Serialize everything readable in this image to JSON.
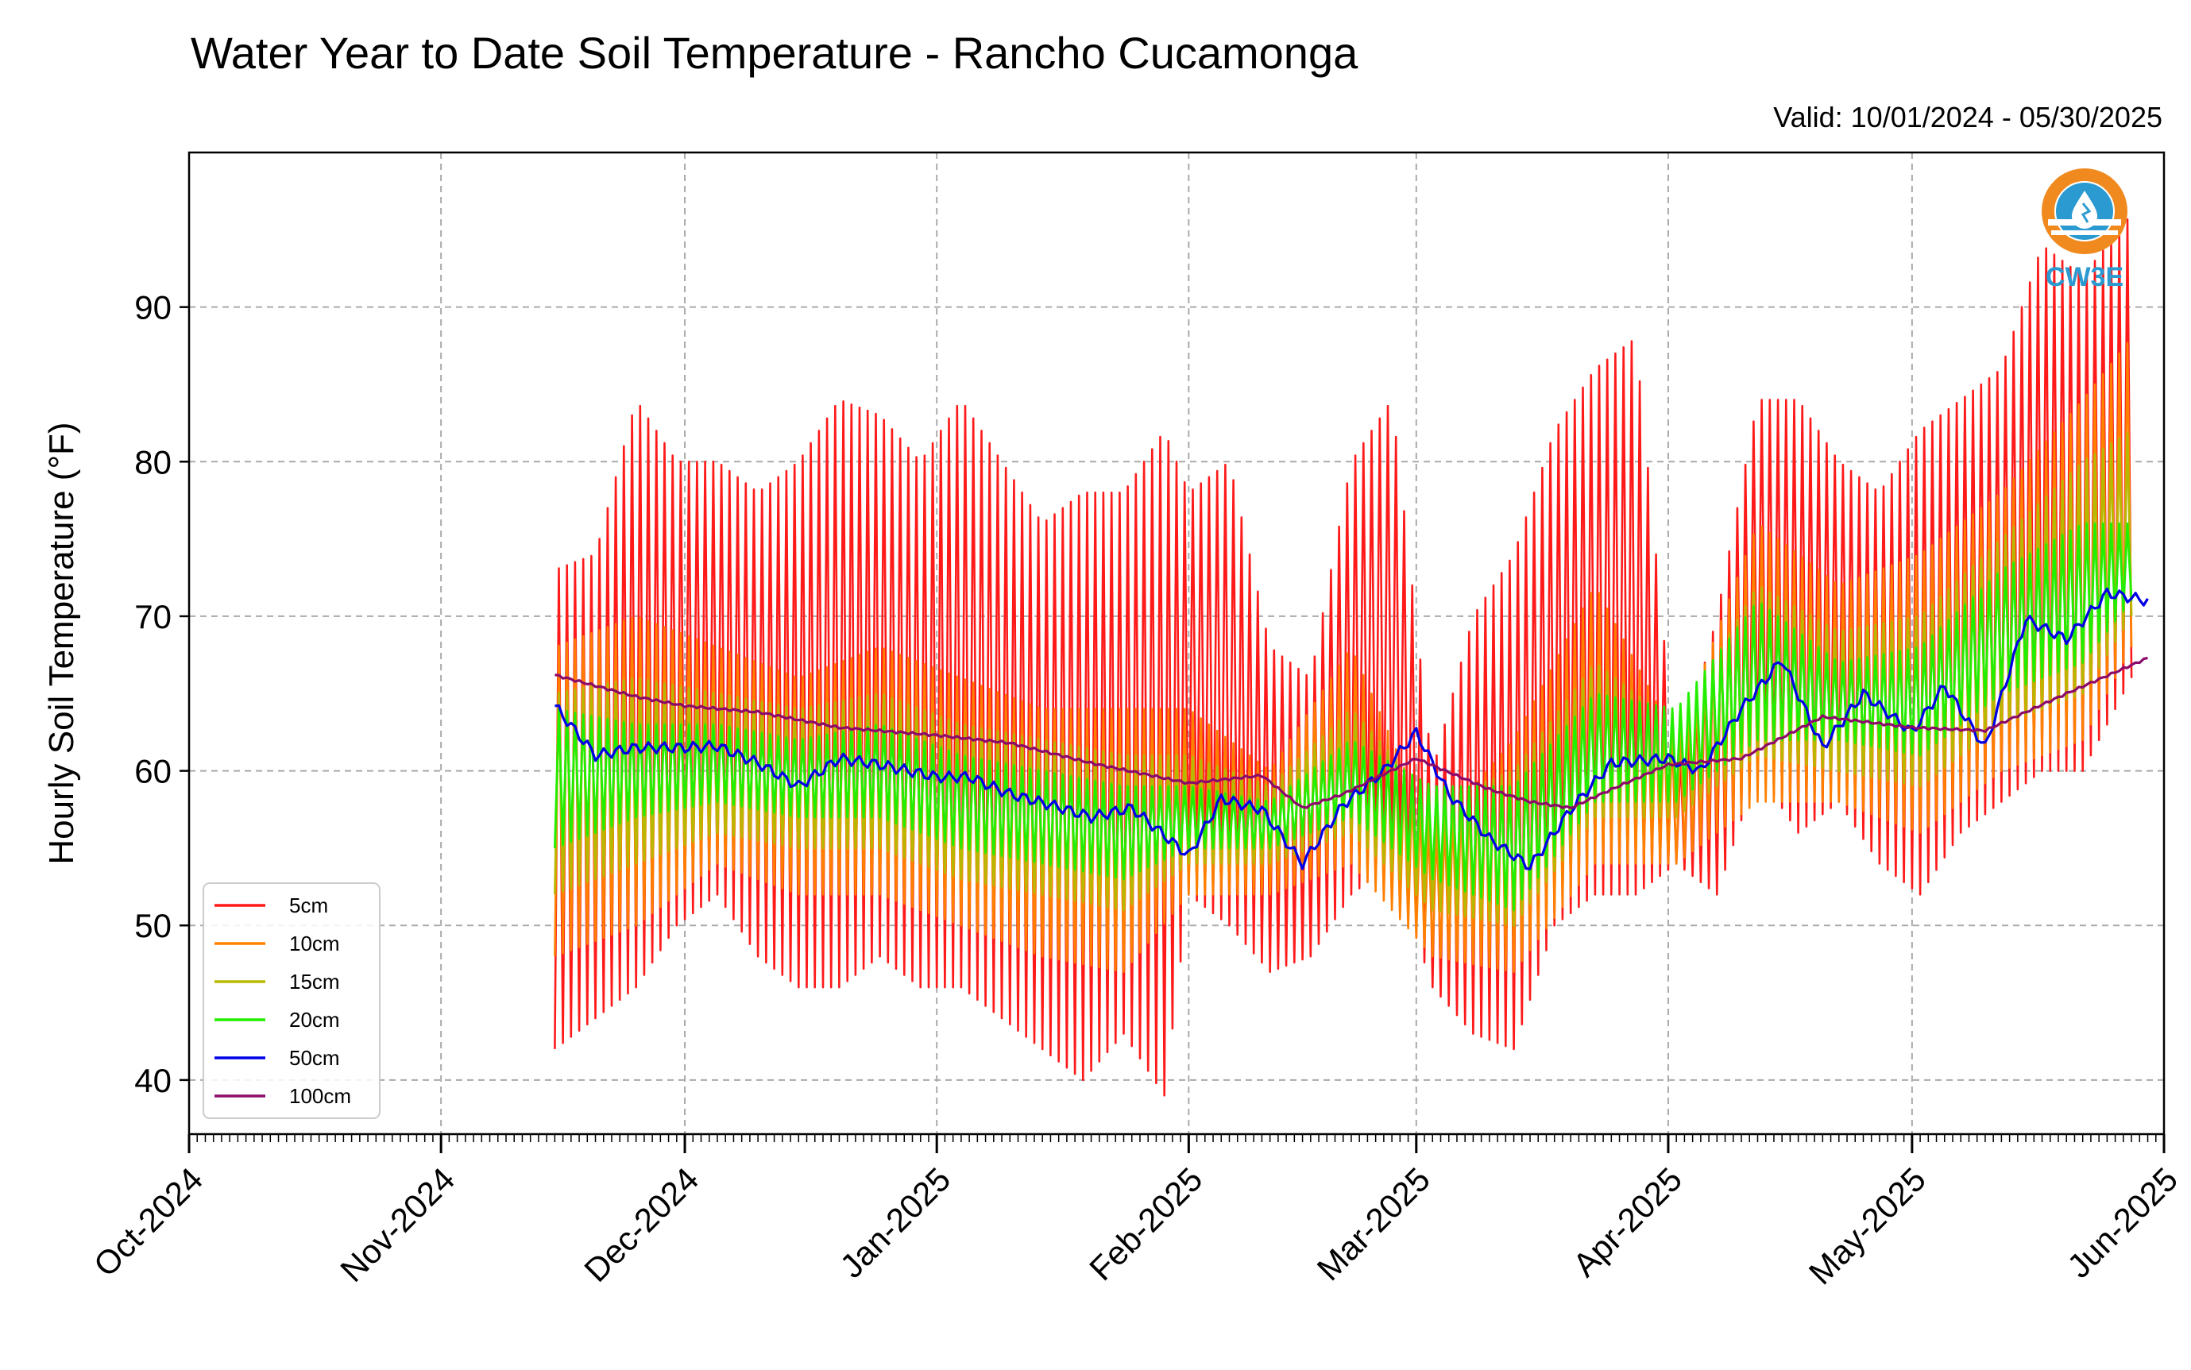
{
  "chart_data": {
    "type": "line",
    "title": "Water Year to Date Soil Temperature - Rancho Cucamonga",
    "subtitle": "Valid: 10/01/2024 - 05/30/2025",
    "ylabel": "Hourly Soil Temperature (°F)",
    "xlabel": "",
    "ylim": [
      36.5,
      100.0
    ],
    "xlim": [
      "2024-10-01",
      "2025-06-01"
    ],
    "yticks": [
      40,
      50,
      60,
      70,
      80,
      90
    ],
    "ytick_labels": [
      "40",
      "50",
      "60",
      "70",
      "80",
      "90"
    ],
    "xticks": [
      "2024-10-01",
      "2024-11-01",
      "2024-12-01",
      "2025-01-01",
      "2025-02-01",
      "2025-03-01",
      "2025-04-01",
      "2025-05-01",
      "2025-06-01"
    ],
    "xtick_labels": [
      "Oct-2024",
      "Nov-2024",
      "Dec-2024",
      "Jan-2025",
      "Feb-2025",
      "Mar-2025",
      "Apr-2025",
      "May-2025",
      "Jun-2025"
    ],
    "grid": true,
    "legend_position": "lower-left",
    "colors": {
      "5cm": "#ff1a1a",
      "10cm": "#ff8000",
      "15cm": "#b8b800",
      "20cm": "#22ee00",
      "50cm": "#0000e6",
      "100cm": "#8b0a6a"
    },
    "series": [
      {
        "name": "5cm",
        "note": "daily max / min envelope (hourly diurnal cycle between them)",
        "x": [
          "2024-11-15",
          "2024-11-20",
          "2024-11-25",
          "2024-11-30",
          "2024-12-05",
          "2024-12-10",
          "2024-12-15",
          "2024-12-20",
          "2024-12-25",
          "2024-12-30",
          "2025-01-04",
          "2025-01-09",
          "2025-01-14",
          "2025-01-19",
          "2025-01-24",
          "2025-01-29",
          "2025-02-01",
          "2025-02-06",
          "2025-02-11",
          "2025-02-16",
          "2025-02-21",
          "2025-02-26",
          "2025-03-03",
          "2025-03-08",
          "2025-03-13",
          "2025-03-18",
          "2025-03-23",
          "2025-03-28",
          "2025-04-02",
          "2025-04-07",
          "2025-04-12",
          "2025-04-17",
          "2025-04-22",
          "2025-04-27",
          "2025-05-02",
          "2025-05-07",
          "2025-05-12",
          "2025-05-17",
          "2025-05-22",
          "2025-05-28"
        ],
        "max": [
          73,
          74,
          84,
          80,
          80,
          78,
          80,
          84,
          83,
          80,
          84,
          80,
          76,
          78,
          78,
          82,
          78,
          80,
          68,
          66,
          80,
          84,
          60,
          70,
          74,
          82,
          86,
          88,
          60,
          70,
          84,
          84,
          80,
          78,
          82,
          84,
          86,
          94,
          92,
          96
        ],
        "min": [
          42,
          44,
          46,
          50,
          52,
          48,
          46,
          46,
          48,
          46,
          46,
          44,
          42,
          40,
          43,
          39,
          52,
          50,
          47,
          48,
          52,
          54,
          46,
          43,
          42,
          50,
          52,
          52,
          54,
          52,
          60,
          56,
          58,
          54,
          52,
          56,
          58,
          60,
          60,
          66
        ]
      },
      {
        "name": "10cm",
        "x": [
          "2024-11-15",
          "2024-11-25",
          "2024-12-05",
          "2024-12-15",
          "2024-12-25",
          "2025-01-04",
          "2025-01-14",
          "2025-01-24",
          "2025-02-01",
          "2025-02-11",
          "2025-02-21",
          "2025-03-03",
          "2025-03-13",
          "2025-03-23",
          "2025-04-02",
          "2025-04-12",
          "2025-04-22",
          "2025-05-02",
          "2025-05-12",
          "2025-05-22",
          "2025-05-28"
        ],
        "max": [
          68,
          70,
          68,
          66,
          68,
          66,
          64,
          64,
          64,
          60,
          68,
          56,
          62,
          72,
          62,
          76,
          72,
          74,
          78,
          84,
          88
        ],
        "min": [
          48,
          50,
          54,
          52,
          52,
          50,
          48,
          47,
          52,
          52,
          54,
          48,
          47,
          54,
          54,
          58,
          58,
          56,
          60,
          62,
          68
        ]
      },
      {
        "name": "15cm",
        "x": [
          "2024-11-15",
          "2024-11-25",
          "2024-12-05",
          "2024-12-15",
          "2024-12-25",
          "2025-01-04",
          "2025-01-14",
          "2025-01-24",
          "2025-02-01",
          "2025-02-11",
          "2025-02-21",
          "2025-03-03",
          "2025-03-13",
          "2025-03-23",
          "2025-04-02",
          "2025-04-12",
          "2025-04-22",
          "2025-05-02",
          "2025-05-12",
          "2025-05-22",
          "2025-05-28"
        ],
        "max": [
          65,
          66,
          65,
          64,
          65,
          63,
          62,
          61,
          61,
          59,
          64,
          58,
          60,
          67,
          63,
          72,
          69,
          70,
          75,
          80,
          82
        ],
        "min": [
          52,
          54,
          56,
          55,
          55,
          53,
          52,
          51,
          54,
          54,
          56,
          51,
          50,
          57,
          57,
          61,
          60,
          59,
          63,
          65,
          70
        ]
      },
      {
        "name": "20cm",
        "x": [
          "2024-11-15",
          "2024-11-25",
          "2024-12-05",
          "2024-12-15",
          "2024-12-25",
          "2025-01-04",
          "2025-01-14",
          "2025-01-24",
          "2025-02-01",
          "2025-02-11",
          "2025-02-21",
          "2025-03-03",
          "2025-03-13",
          "2025-03-23",
          "2025-04-02",
          "2025-04-12",
          "2025-04-22",
          "2025-05-02",
          "2025-05-12",
          "2025-05-22",
          "2025-05-28"
        ],
        "max": [
          64,
          63,
          63,
          62,
          63,
          61,
          60,
          59,
          59,
          58,
          62,
          59,
          59,
          65,
          64,
          71,
          67,
          68,
          73,
          76,
          76
        ],
        "min": [
          55,
          57,
          58,
          57,
          57,
          55,
          54,
          53,
          55,
          55,
          57,
          53,
          51,
          58,
          58,
          62,
          62,
          61,
          65,
          67,
          71
        ]
      },
      {
        "name": "50cm",
        "x": [
          "2024-11-15",
          "2024-11-20",
          "2024-11-25",
          "2024-12-01",
          "2024-12-05",
          "2024-12-10",
          "2024-12-15",
          "2024-12-20",
          "2024-12-25",
          "2025-01-01",
          "2025-01-05",
          "2025-01-10",
          "2025-01-15",
          "2025-01-20",
          "2025-01-25",
          "2025-02-01",
          "2025-02-05",
          "2025-02-10",
          "2025-02-15",
          "2025-02-20",
          "2025-02-25",
          "2025-03-01",
          "2025-03-05",
          "2025-03-10",
          "2025-03-15",
          "2025-03-20",
          "2025-03-25",
          "2025-04-01",
          "2025-04-05",
          "2025-04-10",
          "2025-04-15",
          "2025-04-20",
          "2025-04-25",
          "2025-05-01",
          "2025-05-05",
          "2025-05-10",
          "2025-05-15",
          "2025-05-20",
          "2025-05-25",
          "2025-05-30"
        ],
        "values": [
          64.2,
          61.0,
          61.5,
          61.5,
          61.6,
          60.5,
          59.0,
          60.8,
          60.4,
          59.6,
          59.6,
          58.5,
          57.8,
          57.0,
          57.6,
          54.5,
          58.2,
          57.5,
          54.0,
          57.8,
          60.0,
          62.5,
          58.5,
          55.6,
          53.8,
          57.5,
          60.5,
          60.8,
          60.0,
          64.0,
          67.2,
          61.5,
          65.0,
          62.5,
          65.5,
          61.5,
          69.8,
          68.5,
          71.5,
          71.0
        ]
      },
      {
        "name": "100cm",
        "x": [
          "2024-11-15",
          "2024-11-20",
          "2024-11-25",
          "2024-12-01",
          "2024-12-10",
          "2024-12-20",
          "2025-01-01",
          "2025-01-10",
          "2025-01-20",
          "2025-02-01",
          "2025-02-10",
          "2025-02-15",
          "2025-02-20",
          "2025-03-01",
          "2025-03-10",
          "2025-03-15",
          "2025-03-20",
          "2025-03-25",
          "2025-04-01",
          "2025-04-10",
          "2025-04-20",
          "2025-05-01",
          "2025-05-10",
          "2025-05-20",
          "2025-05-30"
        ],
        "values": [
          66.2,
          65.5,
          64.8,
          64.2,
          63.8,
          62.8,
          62.3,
          61.8,
          60.5,
          59.2,
          59.7,
          57.6,
          58.5,
          60.8,
          58.8,
          58.0,
          57.6,
          58.8,
          60.4,
          60.8,
          63.5,
          62.8,
          62.6,
          65.0,
          67.3
        ]
      }
    ]
  },
  "logo": {
    "text": "CW3E",
    "ring_color": "#f08a1e",
    "text_color": "#2a9ad0"
  }
}
